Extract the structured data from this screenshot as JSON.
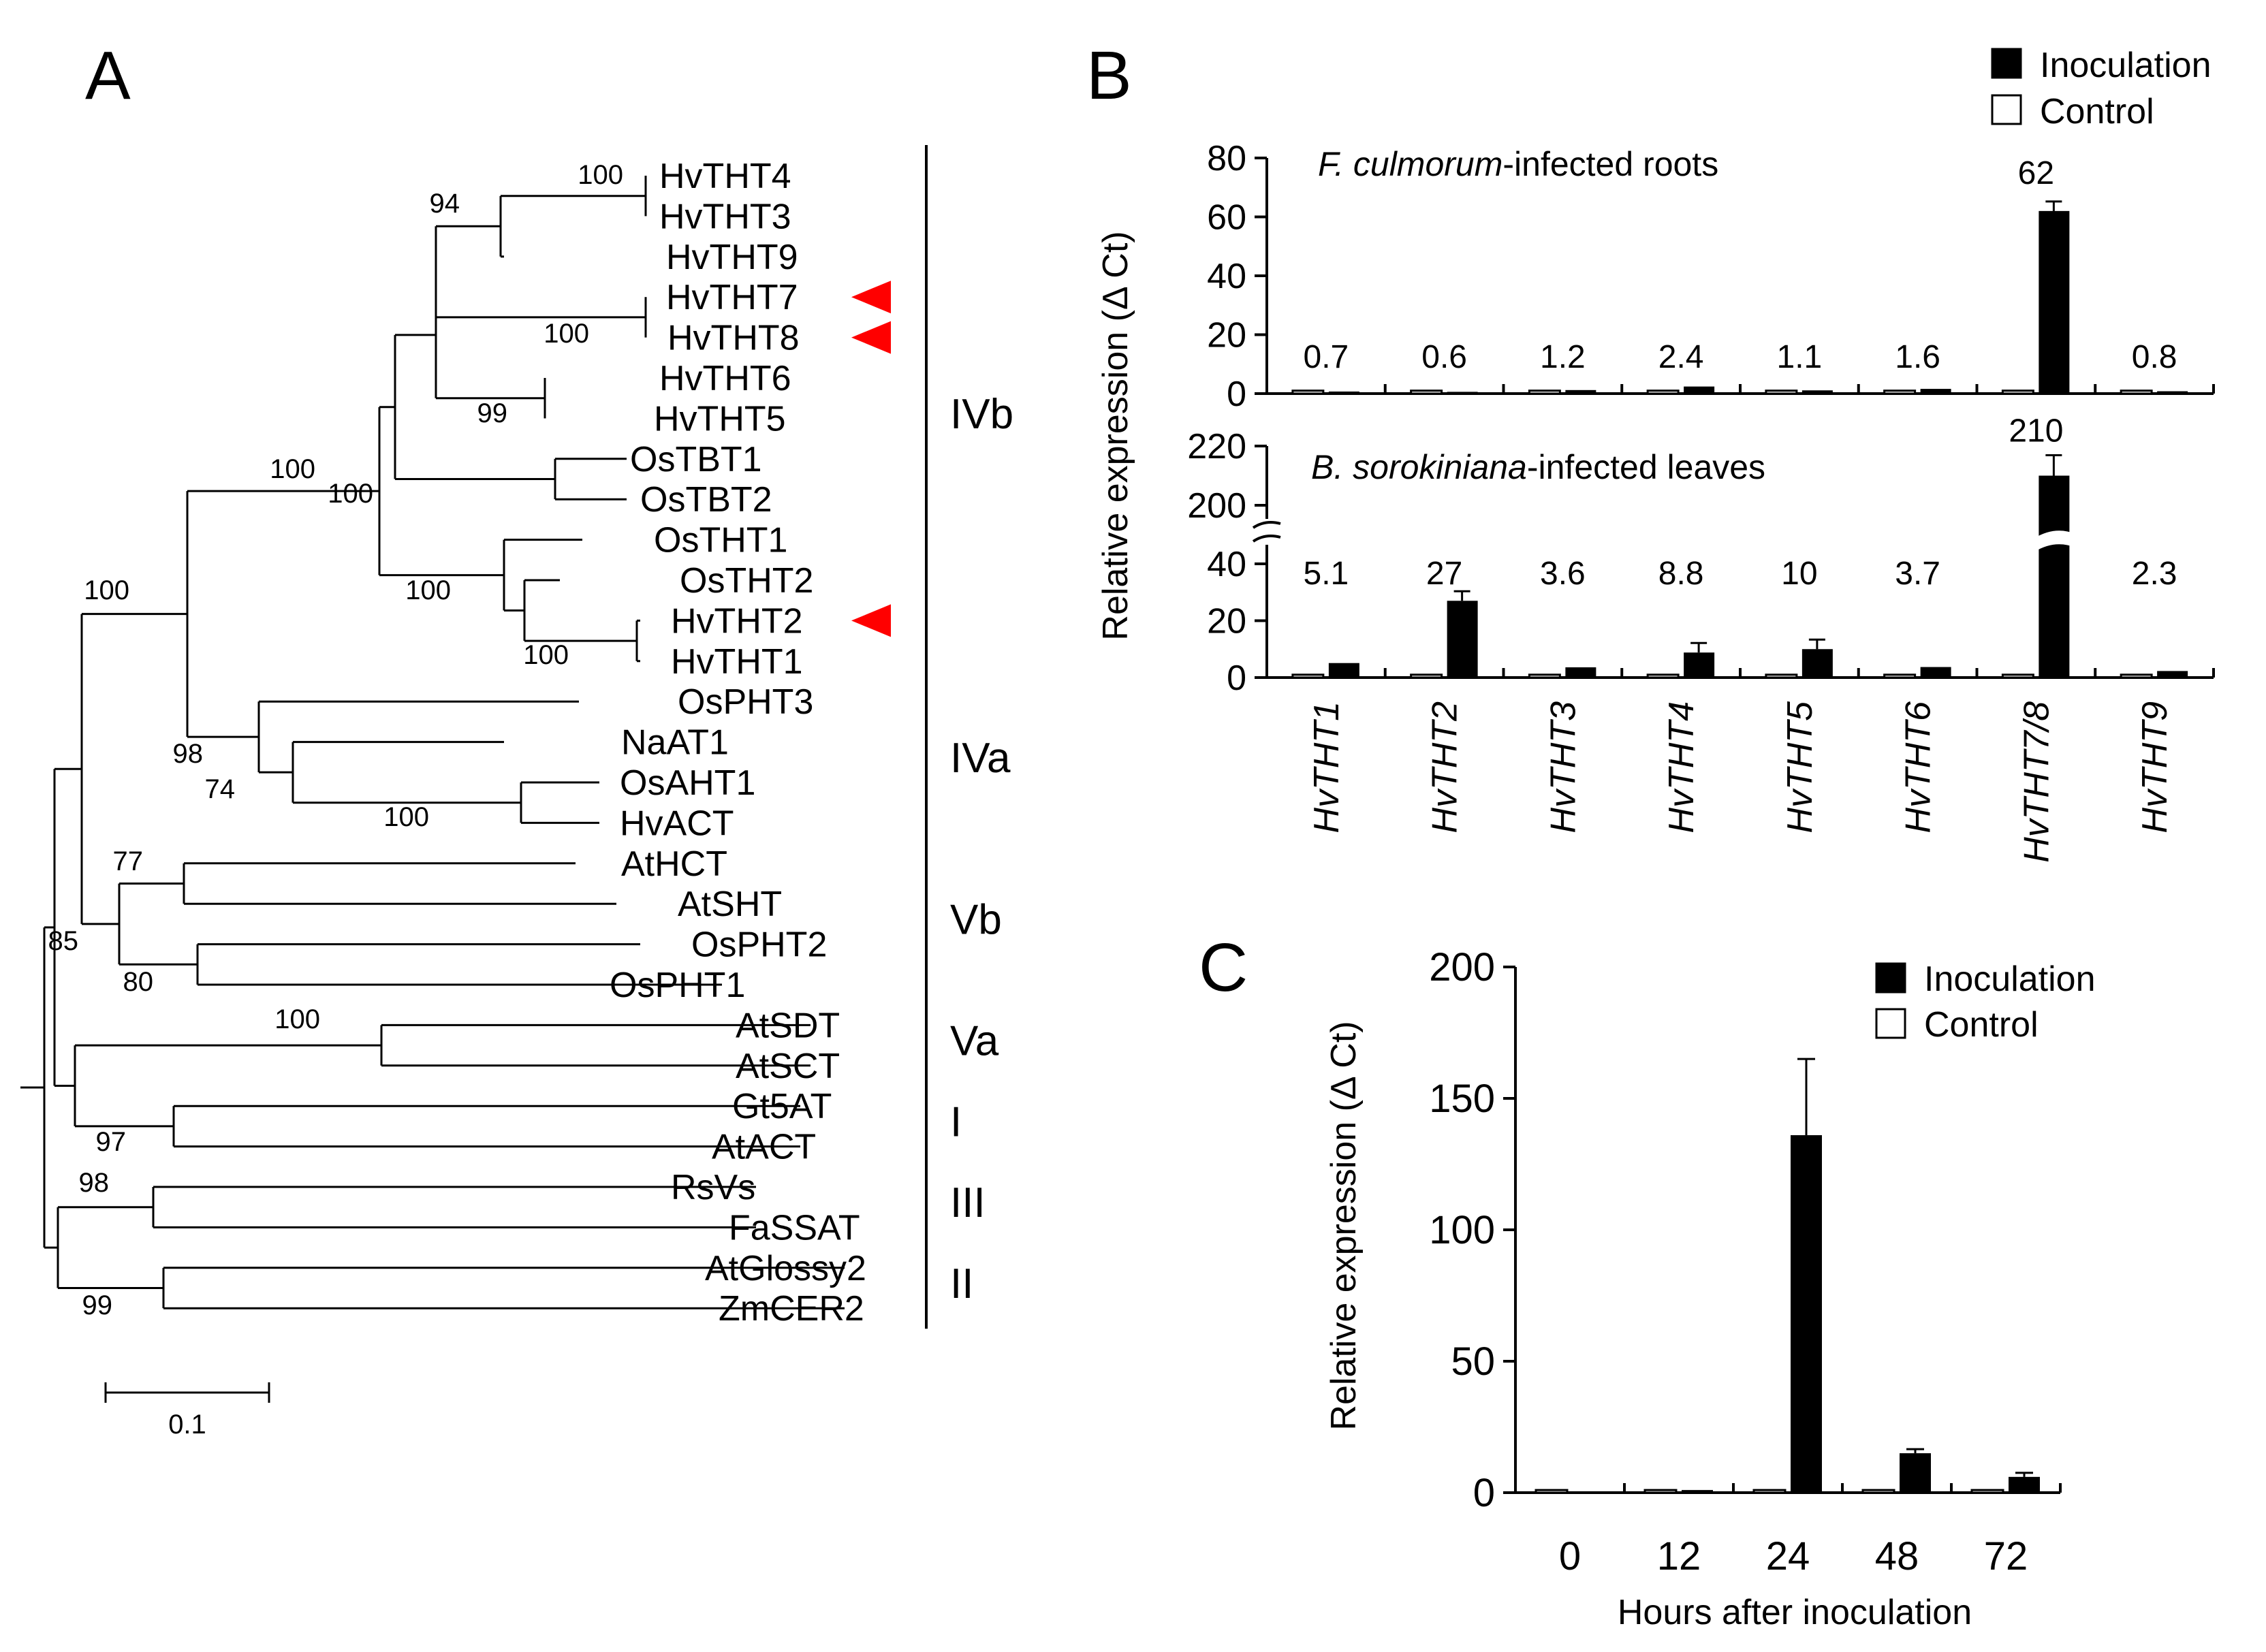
{
  "panels": {
    "a": "A",
    "b": "B",
    "c": "C"
  },
  "tree": {
    "tips": [
      "HvTHT4",
      "HvTHT3",
      "HvTHT9",
      "HvTHT7",
      "HvTHT8",
      "HvTHT6",
      "HvTHT5",
      "OsTBT1",
      "OsTBT2",
      "OsTHT1",
      "OsTHT2",
      "HvTHT2",
      "HvTHT1",
      "OsPHT3",
      "NaAT1",
      "OsAHT1",
      "HvACT",
      "AtHCT",
      "AtSHT",
      "OsPHT2",
      "OsPHT1",
      "AtSDT",
      "AtSCT",
      "Gt5AT",
      "AtACT",
      "RsVs",
      "FaSSAT",
      "AtGlossy2",
      "ZmCER2"
    ],
    "bootstrap": [
      "100",
      "94",
      "100",
      "99",
      "100",
      "100",
      "100",
      "100",
      "100",
      "98",
      "74",
      "100",
      "77",
      "85",
      "80",
      "100",
      "97",
      "98",
      "99"
    ],
    "clades": [
      "IVb",
      "IVa",
      "Vb",
      "Va",
      "I",
      "III",
      "II"
    ],
    "highlighted_tips": [
      "HvTHT7",
      "HvTHT8",
      "HvTHT2"
    ],
    "marker_color": "#ff0000",
    "scale_label": "0.1"
  },
  "legend": {
    "inoculation": "Inoculation",
    "control": "Control",
    "inoculation_color": "#000000",
    "control_color": "#ffffff"
  },
  "chart_data": [
    {
      "type": "bar",
      "title": "F. culmorum-infected roots",
      "title_italic": "F. culmorum",
      "title_rest": "-infected roots",
      "ylabel": "Relative expression (Δ Ct)",
      "ylim": [
        0,
        80
      ],
      "yticks": [
        "0",
        "20",
        "40",
        "60",
        "80"
      ],
      "categories": [
        "HvTHT1",
        "HvTHT2",
        "HvTHT3",
        "HvTHT4",
        "HvTHT5",
        "HvTHT6",
        "HvTHT7/8",
        "HvTHT9"
      ],
      "series": [
        {
          "name": "Control",
          "values": [
            1,
            1,
            1,
            1,
            1,
            1,
            1,
            1
          ]
        },
        {
          "name": "Inoculation",
          "values": [
            0.7,
            0.6,
            1.2,
            2.4,
            1.1,
            1.6,
            62,
            0.8
          ]
        }
      ],
      "data_labels": [
        "0.7",
        "0.6",
        "1.2",
        "2.4",
        "1.1",
        "1.6",
        "62",
        "0.8"
      ]
    },
    {
      "type": "bar",
      "title": "B. sorokiniana-infected leaves",
      "title_italic": "B. sorokiniana",
      "title_rest": "-infected leaves",
      "ylabel": "Relative expression (Δ Ct)",
      "axis_break": [
        40,
        200
      ],
      "yticks": [
        "0",
        "20",
        "40",
        "200",
        "220"
      ],
      "categories": [
        "HvTHT1",
        "HvTHT2",
        "HvTHT3",
        "HvTHT4",
        "HvTHT5",
        "HvTHT6",
        "HvTHT7/8",
        "HvTHT9"
      ],
      "series": [
        {
          "name": "Control",
          "values": [
            1,
            1,
            1,
            1,
            1,
            1,
            1,
            1
          ]
        },
        {
          "name": "Inoculation",
          "values": [
            5.1,
            27,
            3.6,
            8.8,
            10,
            3.7,
            210,
            2.3
          ]
        }
      ],
      "data_labels": [
        "5.1",
        "27",
        "3.6",
        "8.8",
        "10",
        "3.7",
        "210",
        "2.3"
      ]
    },
    {
      "type": "bar",
      "xlabel": "Hours after inoculation",
      "ylabel": "Relative expression (Δ Ct)",
      "ylim": [
        0,
        200
      ],
      "yticks": [
        "0",
        "50",
        "100",
        "150",
        "200"
      ],
      "categories": [
        "0",
        "12",
        "24",
        "48",
        "72"
      ],
      "series": [
        {
          "name": "Control",
          "values": [
            1,
            1,
            1,
            1,
            1
          ]
        },
        {
          "name": "Inoculation",
          "values": [
            0,
            1,
            136,
            15,
            6
          ]
        }
      ]
    }
  ]
}
